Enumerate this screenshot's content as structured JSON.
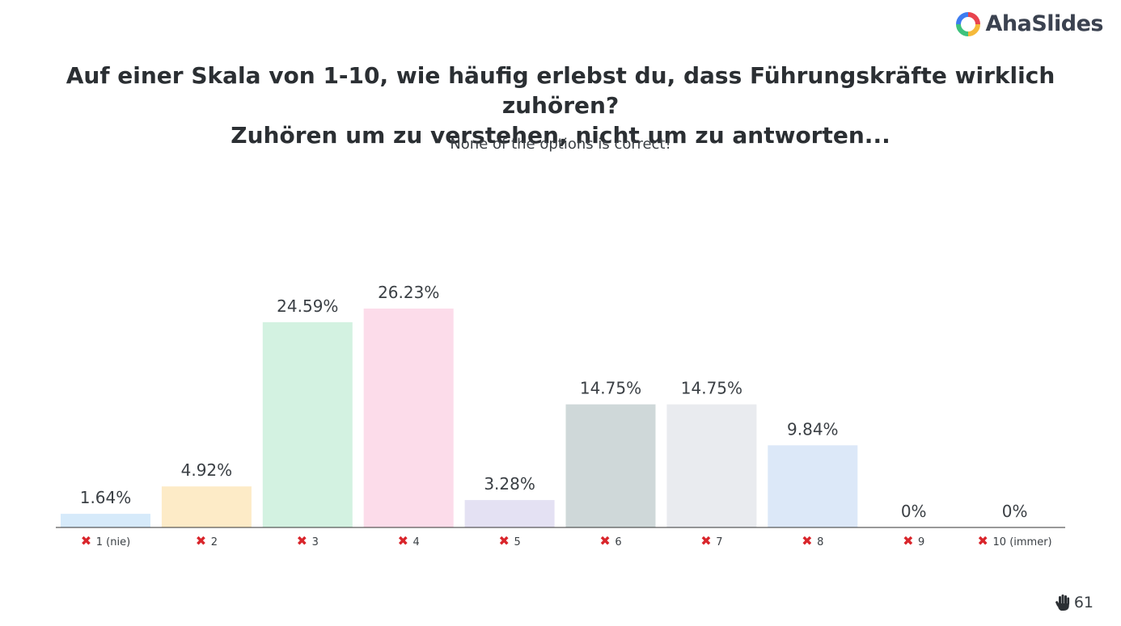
{
  "brand": {
    "name": "AhaSlides",
    "logo_icon": "ahaslides-logo-icon"
  },
  "question": {
    "line1": "Auf einer Skala von 1-10, wie häufig erlebst du, dass Führungskräfte wirklich zuhören?",
    "line2": "Zuhören um zu verstehen, nicht um zu antworten..."
  },
  "feedback": "None of the options is correct!",
  "responses": {
    "icon": "hand-icon",
    "count": "61"
  },
  "chart_data": {
    "type": "bar",
    "categories": [
      "1 (nie)",
      "2",
      "3",
      "4",
      "5",
      "6",
      "7",
      "8",
      "9",
      "10 (immer)"
    ],
    "values": [
      1.64,
      4.92,
      24.59,
      26.23,
      3.28,
      14.75,
      14.75,
      9.84,
      0,
      0
    ],
    "value_labels": [
      "1.64%",
      "4.92%",
      "24.59%",
      "26.23%",
      "3.28%",
      "14.75%",
      "14.75%",
      "9.84%",
      "0%",
      "0%"
    ],
    "colors": [
      "#d6eafa",
      "#fdebc7",
      "#d3f2e1",
      "#fcdcea",
      "#e4e1f3",
      "#cfd8d9",
      "#e9ebef",
      "#dce8f8",
      "#d6eafa",
      "#fdebc7"
    ],
    "correct": [
      false,
      false,
      false,
      false,
      false,
      false,
      false,
      false,
      false,
      false
    ],
    "marker_icon": "cross-mark-icon",
    "marker_color": "#d9252b",
    "ylim": [
      0,
      26.23
    ],
    "grid": false
  }
}
